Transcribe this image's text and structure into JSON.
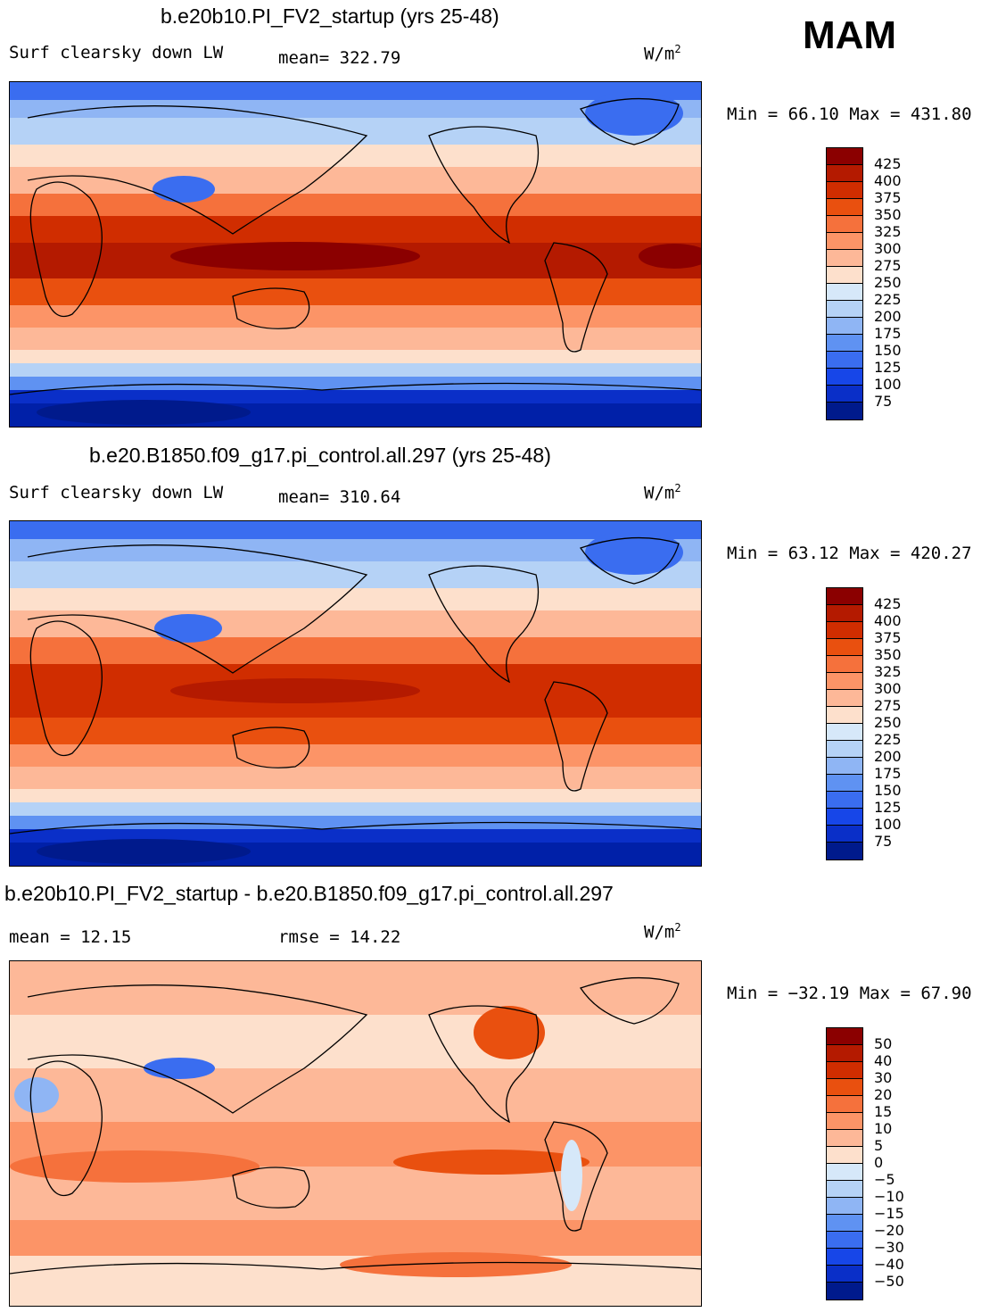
{
  "season": "MAM",
  "colors": {
    "reds": [
      "#8b0000",
      "#b41a00",
      "#d02d00",
      "#e9500f",
      "#f5713c",
      "#fc9467",
      "#fdb898",
      "#fde0cc"
    ],
    "blues": [
      "#d6e8f9",
      "#b5d2f6",
      "#8fb5f4",
      "#5f92f2",
      "#3a6df0",
      "#1746e8",
      "#0a2fc8",
      "#0020a8",
      "#001a8c"
    ],
    "land": "#000000"
  },
  "panels": [
    {
      "title": "b.e20b10.PI_FV2_startup (yrs 25-48)",
      "left_label": "Surf clearsky down LW",
      "mid_label": "mean= 322.79",
      "units_base": "W/m",
      "units_exp": "2",
      "minmax": "Min =   66.10 Max =  431.80",
      "colorbar_labels": [
        "425",
        "400",
        "375",
        "350",
        "325",
        "300",
        "275",
        "250",
        "225",
        "200",
        "175",
        "150",
        "125",
        "100",
        "75"
      ]
    },
    {
      "title": "b.e20.B1850.f09_g17.pi_control.all.297 (yrs 25-48)",
      "left_label": "Surf clearsky down LW",
      "mid_label": "mean= 310.64",
      "units_base": "W/m",
      "units_exp": "2",
      "minmax": "Min =   63.12 Max =  420.27",
      "colorbar_labels": [
        "425",
        "400",
        "375",
        "350",
        "325",
        "300",
        "275",
        "250",
        "225",
        "200",
        "175",
        "150",
        "125",
        "100",
        "75"
      ]
    },
    {
      "title": "b.e20b10.PI_FV2_startup - b.e20.B1850.f09_g17.pi_control.all.297",
      "left_label": "mean =   12.15",
      "mid_label": "rmse =   14.22",
      "units_base": "W/m",
      "units_exp": "2",
      "minmax": "Min = −32.19 Max =   67.90",
      "colorbar_labels": [
        "50",
        "40",
        "30",
        "20",
        "15",
        "10",
        "5",
        "0",
        "−5",
        "−10",
        "−15",
        "−20",
        "−30",
        "−40",
        "−50"
      ]
    }
  ],
  "chart_data": [
    {
      "type": "heatmap",
      "title": "b.e20b10.PI_FV2_startup (yrs 25-48)",
      "variable": "Surf clearsky down LW",
      "units": "W/m2",
      "mean": 322.79,
      "min": 66.1,
      "max": 431.8,
      "levels": [
        75,
        100,
        125,
        150,
        175,
        200,
        225,
        250,
        275,
        300,
        325,
        350,
        375,
        400,
        425
      ],
      "zonal_profile": [
        {
          "lat": 90,
          "value": 150
        },
        {
          "lat": 75,
          "value": 200
        },
        {
          "lat": 60,
          "value": 240
        },
        {
          "lat": 45,
          "value": 290
        },
        {
          "lat": 30,
          "value": 345
        },
        {
          "lat": 15,
          "value": 390
        },
        {
          "lat": 0,
          "value": 420
        },
        {
          "lat": -15,
          "value": 395
        },
        {
          "lat": -30,
          "value": 345
        },
        {
          "lat": -45,
          "value": 290
        },
        {
          "lat": -60,
          "value": 230
        },
        {
          "lat": -75,
          "value": 120
        },
        {
          "lat": -90,
          "value": 80
        }
      ]
    },
    {
      "type": "heatmap",
      "title": "b.e20.B1850.f09_g17.pi_control.all.297 (yrs 25-48)",
      "variable": "Surf clearsky down LW",
      "units": "W/m2",
      "mean": 310.64,
      "min": 63.12,
      "max": 420.27,
      "levels": [
        75,
        100,
        125,
        150,
        175,
        200,
        225,
        250,
        275,
        300,
        325,
        350,
        375,
        400,
        425
      ],
      "zonal_profile": [
        {
          "lat": 90,
          "value": 145
        },
        {
          "lat": 75,
          "value": 190
        },
        {
          "lat": 60,
          "value": 230
        },
        {
          "lat": 45,
          "value": 280
        },
        {
          "lat": 30,
          "value": 330
        },
        {
          "lat": 15,
          "value": 375
        },
        {
          "lat": 0,
          "value": 400
        },
        {
          "lat": -15,
          "value": 380
        },
        {
          "lat": -30,
          "value": 330
        },
        {
          "lat": -45,
          "value": 280
        },
        {
          "lat": -60,
          "value": 220
        },
        {
          "lat": -75,
          "value": 115
        },
        {
          "lat": -90,
          "value": 78
        }
      ]
    },
    {
      "type": "heatmap",
      "title": "b.e20b10.PI_FV2_startup - b.e20.B1850.f09_g17.pi_control.all.297",
      "units": "W/m2",
      "mean": 12.15,
      "rmse": 14.22,
      "min": -32.19,
      "max": 67.9,
      "levels": [
        -50,
        -40,
        -30,
        -20,
        -15,
        -10,
        -5,
        0,
        5,
        10,
        15,
        20,
        30,
        40,
        50
      ],
      "zonal_profile": [
        {
          "lat": 90,
          "value": 8
        },
        {
          "lat": 75,
          "value": 12
        },
        {
          "lat": 60,
          "value": 10
        },
        {
          "lat": 45,
          "value": 8
        },
        {
          "lat": 30,
          "value": 10
        },
        {
          "lat": 15,
          "value": 14
        },
        {
          "lat": 0,
          "value": 17
        },
        {
          "lat": -15,
          "value": 18
        },
        {
          "lat": -30,
          "value": 16
        },
        {
          "lat": -45,
          "value": 13
        },
        {
          "lat": -60,
          "value": 10
        },
        {
          "lat": -75,
          "value": 5
        },
        {
          "lat": -90,
          "value": 3
        }
      ]
    }
  ]
}
